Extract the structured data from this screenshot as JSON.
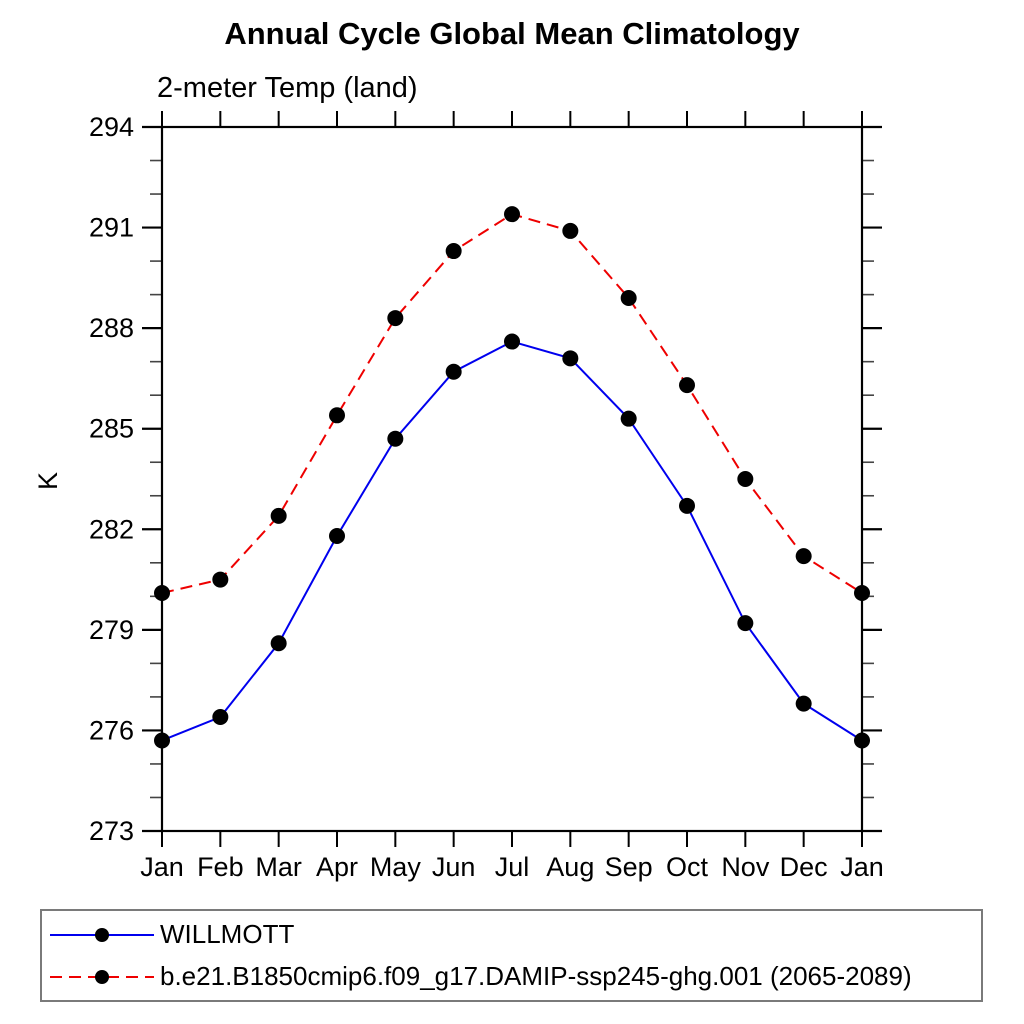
{
  "header": {
    "title": "Annual Cycle Global Mean Climatology",
    "subtitle": "2-meter Temp (land)"
  },
  "chart_data": {
    "type": "line",
    "title": "Annual Cycle Global Mean Climatology",
    "subtitle": "2-meter Temp (land)",
    "xlabel": "",
    "ylabel": "K",
    "categories": [
      "Jan",
      "Feb",
      "Mar",
      "Apr",
      "May",
      "Jun",
      "Jul",
      "Aug",
      "Sep",
      "Oct",
      "Nov",
      "Dec",
      "Jan"
    ],
    "ylim": [
      273,
      294
    ],
    "ytick_labels": [
      "273",
      "276",
      "279",
      "282",
      "285",
      "288",
      "291",
      "294"
    ],
    "ytick_minor_interval": 1,
    "grid": false,
    "legend_position": "bottom",
    "axis_color": "#000000",
    "marker_color": "#000000",
    "series": [
      {
        "name": "WILLMOTT",
        "color": "#0000ee",
        "line_style": "solid",
        "marker": "filled-circle",
        "values": [
          275.7,
          276.4,
          278.6,
          281.8,
          284.7,
          286.7,
          287.6,
          287.1,
          285.3,
          282.7,
          279.2,
          276.8,
          275.7
        ]
      },
      {
        "name": "b.e21.B1850cmip6.f09_g17.DAMIP-ssp245-ghg.001 (2065-2089)",
        "color": "#ee0000",
        "line_style": "dashed",
        "marker": "filled-circle",
        "values": [
          280.1,
          280.5,
          282.4,
          285.4,
          288.3,
          290.3,
          291.4,
          290.9,
          288.9,
          286.3,
          283.5,
          281.2,
          280.1
        ]
      }
    ]
  }
}
